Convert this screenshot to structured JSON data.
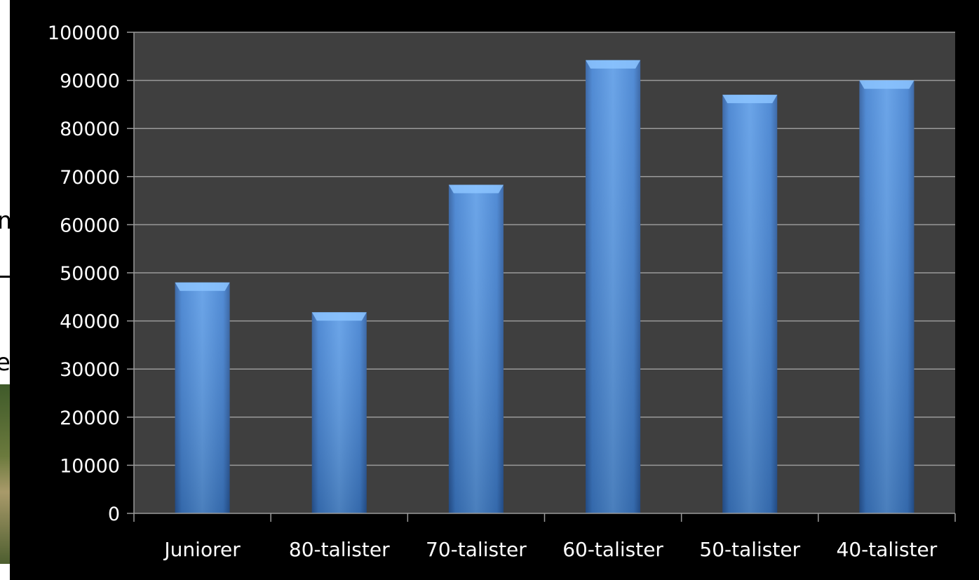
{
  "background_slide": {
    "fragments": [
      "m",
      "e"
    ]
  },
  "chart_data": {
    "type": "bar",
    "categories": [
      "Juniorer",
      "80-talister",
      "70-talister",
      "60-talister",
      "50-talister",
      "40-talister"
    ],
    "values": [
      48000,
      41800,
      68300,
      94200,
      87000,
      90000
    ],
    "title": "",
    "xlabel": "",
    "ylabel": "",
    "ylim": [
      0,
      100000
    ],
    "yticks": [
      0,
      10000,
      20000,
      30000,
      40000,
      50000,
      60000,
      70000,
      80000,
      90000,
      100000
    ],
    "grid": true,
    "legend": "none",
    "colors": {
      "bar_light": "#5b9be6",
      "bar_mid": "#3f7fd0",
      "bar_dark": "#2a5a9e",
      "bar_cap": "#8cc4ff",
      "plot_background": "#3f3f3f",
      "outer_background": "#000000",
      "gridline": "#9a9a9a",
      "text": "#ffffff"
    }
  }
}
